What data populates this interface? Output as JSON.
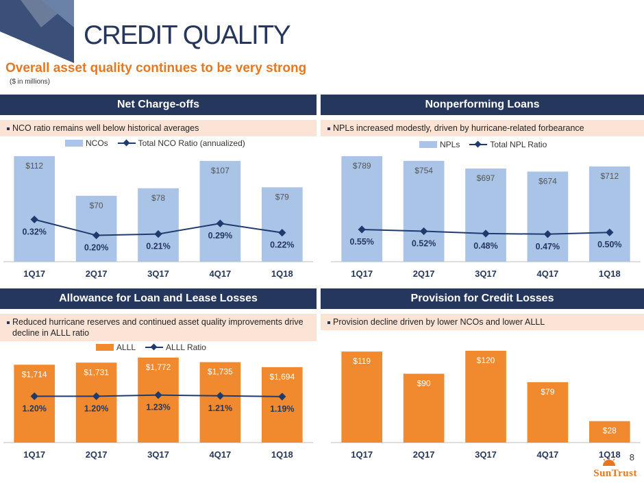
{
  "header": {
    "title": "CREDIT QUALITY",
    "subtitle": "Overall asset quality continues to be very strong",
    "units": "($ in millions)"
  },
  "footer": {
    "page_number": "8",
    "brand": "SunTrust"
  },
  "colors": {
    "navy": "#25375c",
    "blue_bar": "#a9c4e7",
    "orange_bar": "#f18a2e",
    "line": "#1f3b6e"
  },
  "panels": {
    "nco": {
      "title": "Net Charge-offs",
      "note": "NCO ratio remains well below historical averages",
      "legend_bar": "NCOs",
      "legend_line": "Total NCO Ratio (annualized)"
    },
    "npl": {
      "title": "Nonperforming Loans",
      "note": "NPLs increased modestly, driven by hurricane-related forbearance",
      "legend_bar": "NPLs",
      "legend_line": "Total NPL Ratio"
    },
    "alll": {
      "title": "Allowance for Loan and Lease Losses",
      "note": "Reduced hurricane reserves and continued asset quality improvements drive decline in ALLL ratio",
      "legend_bar": "ALLL",
      "legend_line": "ALLL Ratio"
    },
    "provision": {
      "title": "Provision for Credit Losses",
      "note": "Provision decline driven by lower NCOs and lower ALLL"
    }
  },
  "chart_data": [
    {
      "id": "nco",
      "type": "bar",
      "title": "Net Charge-offs",
      "categories": [
        "1Q17",
        "2Q17",
        "3Q17",
        "4Q17",
        "1Q18"
      ],
      "series": [
        {
          "name": "NCOs",
          "kind": "bar",
          "values": [
            112,
            70,
            78,
            107,
            79
          ],
          "labels": [
            "$112",
            "$70",
            "$78",
            "$107",
            "$79"
          ]
        },
        {
          "name": "Total NCO Ratio (annualized)",
          "kind": "line",
          "values": [
            0.32,
            0.2,
            0.21,
            0.29,
            0.22
          ],
          "labels": [
            "0.32%",
            "0.20%",
            "0.21%",
            "0.29%",
            "0.22%"
          ]
        }
      ],
      "bar_color": "#a9c4e7",
      "bar_max": 112,
      "line_range": [
        0,
        0.8
      ]
    },
    {
      "id": "npl",
      "type": "bar",
      "title": "Nonperforming Loans",
      "categories": [
        "1Q17",
        "2Q17",
        "3Q17",
        "4Q17",
        "1Q18"
      ],
      "series": [
        {
          "name": "NPLs",
          "kind": "bar",
          "values": [
            789,
            754,
            697,
            674,
            712
          ],
          "labels": [
            "$789",
            "$754",
            "$697",
            "$674",
            "$712"
          ]
        },
        {
          "name": "Total NPL Ratio",
          "kind": "line",
          "values": [
            0.55,
            0.52,
            0.48,
            0.47,
            0.5
          ],
          "labels": [
            "0.55%",
            "0.52%",
            "0.48%",
            "0.47%",
            "0.50%"
          ]
        }
      ],
      "bar_color": "#a9c4e7",
      "bar_max": 789,
      "line_range": [
        0,
        1.8
      ]
    },
    {
      "id": "alll",
      "type": "bar",
      "title": "Allowance for Loan and Lease Losses",
      "categories": [
        "1Q17",
        "2Q17",
        "3Q17",
        "4Q17",
        "1Q18"
      ],
      "series": [
        {
          "name": "ALLL",
          "kind": "bar",
          "values": [
            1714,
            1731,
            1772,
            1735,
            1694
          ],
          "labels": [
            "$1,714",
            "$1,731",
            "$1,772",
            "$1,735",
            "$1,694"
          ]
        },
        {
          "name": "ALLL Ratio",
          "kind": "line",
          "values": [
            1.2,
            1.2,
            1.23,
            1.21,
            1.19
          ],
          "labels": [
            "1.20%",
            "1.20%",
            "1.23%",
            "1.21%",
            "1.19%"
          ]
        }
      ],
      "bar_color": "#f18a2e",
      "bar_min": 1300,
      "bar_max": 1772,
      "line_range": [
        0,
        2.2
      ]
    },
    {
      "id": "provision",
      "type": "bar",
      "title": "Provision for Credit Losses",
      "categories": [
        "1Q17",
        "2Q17",
        "3Q17",
        "4Q17",
        "1Q18"
      ],
      "series": [
        {
          "name": "Provision",
          "kind": "bar",
          "values": [
            119,
            90,
            120,
            79,
            28
          ],
          "labels": [
            "$119",
            "$90",
            "$120",
            "$79",
            "$28"
          ]
        }
      ],
      "bar_color": "#f18a2e",
      "bar_max": 120
    }
  ]
}
